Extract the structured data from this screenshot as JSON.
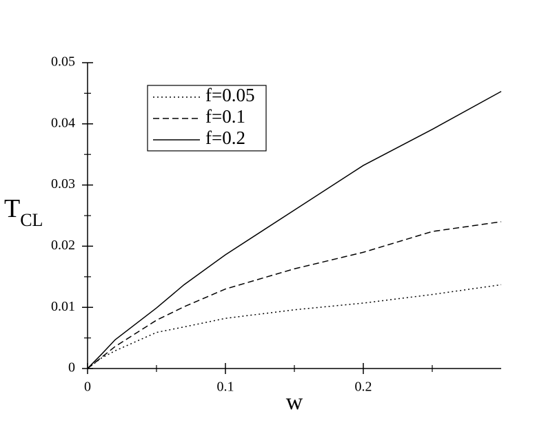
{
  "chart_data": {
    "type": "line",
    "xlabel": "w",
    "ylabel": "T",
    "ylabel_sub": "CL",
    "x": [
      0,
      0.01,
      0.02,
      0.05,
      0.07,
      0.1,
      0.15,
      0.2,
      0.25,
      0.3
    ],
    "series": [
      {
        "name": "f=0.05",
        "color": "#000000",
        "dash": "dotted",
        "values": [
          0,
          0.0017,
          0.0029,
          0.0059,
          0.0068,
          0.0082,
          0.0096,
          0.0107,
          0.0121,
          0.0137
        ]
      },
      {
        "name": "f=0.1",
        "color": "#000000",
        "dash": "dashed",
        "values": [
          0,
          0.0018,
          0.0036,
          0.0079,
          0.0101,
          0.013,
          0.0163,
          0.019,
          0.0224,
          0.024
        ]
      },
      {
        "name": "f=0.2",
        "color": "#000000",
        "dash": "solid",
        "values": [
          0,
          0.0023,
          0.0047,
          0.0099,
          0.0137,
          0.0186,
          0.0259,
          0.0332,
          0.0391,
          0.0453
        ]
      }
    ],
    "xlim": [
      0,
      0.3
    ],
    "ylim": [
      0,
      0.05
    ],
    "xticks": [
      0,
      0.1,
      0.2
    ],
    "yticks": [
      0,
      0.01,
      0.02,
      0.03,
      0.04,
      0.05
    ],
    "xminor": [
      0.05,
      0.15,
      0.25
    ],
    "yminor": [
      0.005,
      0.015,
      0.025,
      0.035,
      0.045
    ],
    "grid": false,
    "legend": "upper-left"
  }
}
